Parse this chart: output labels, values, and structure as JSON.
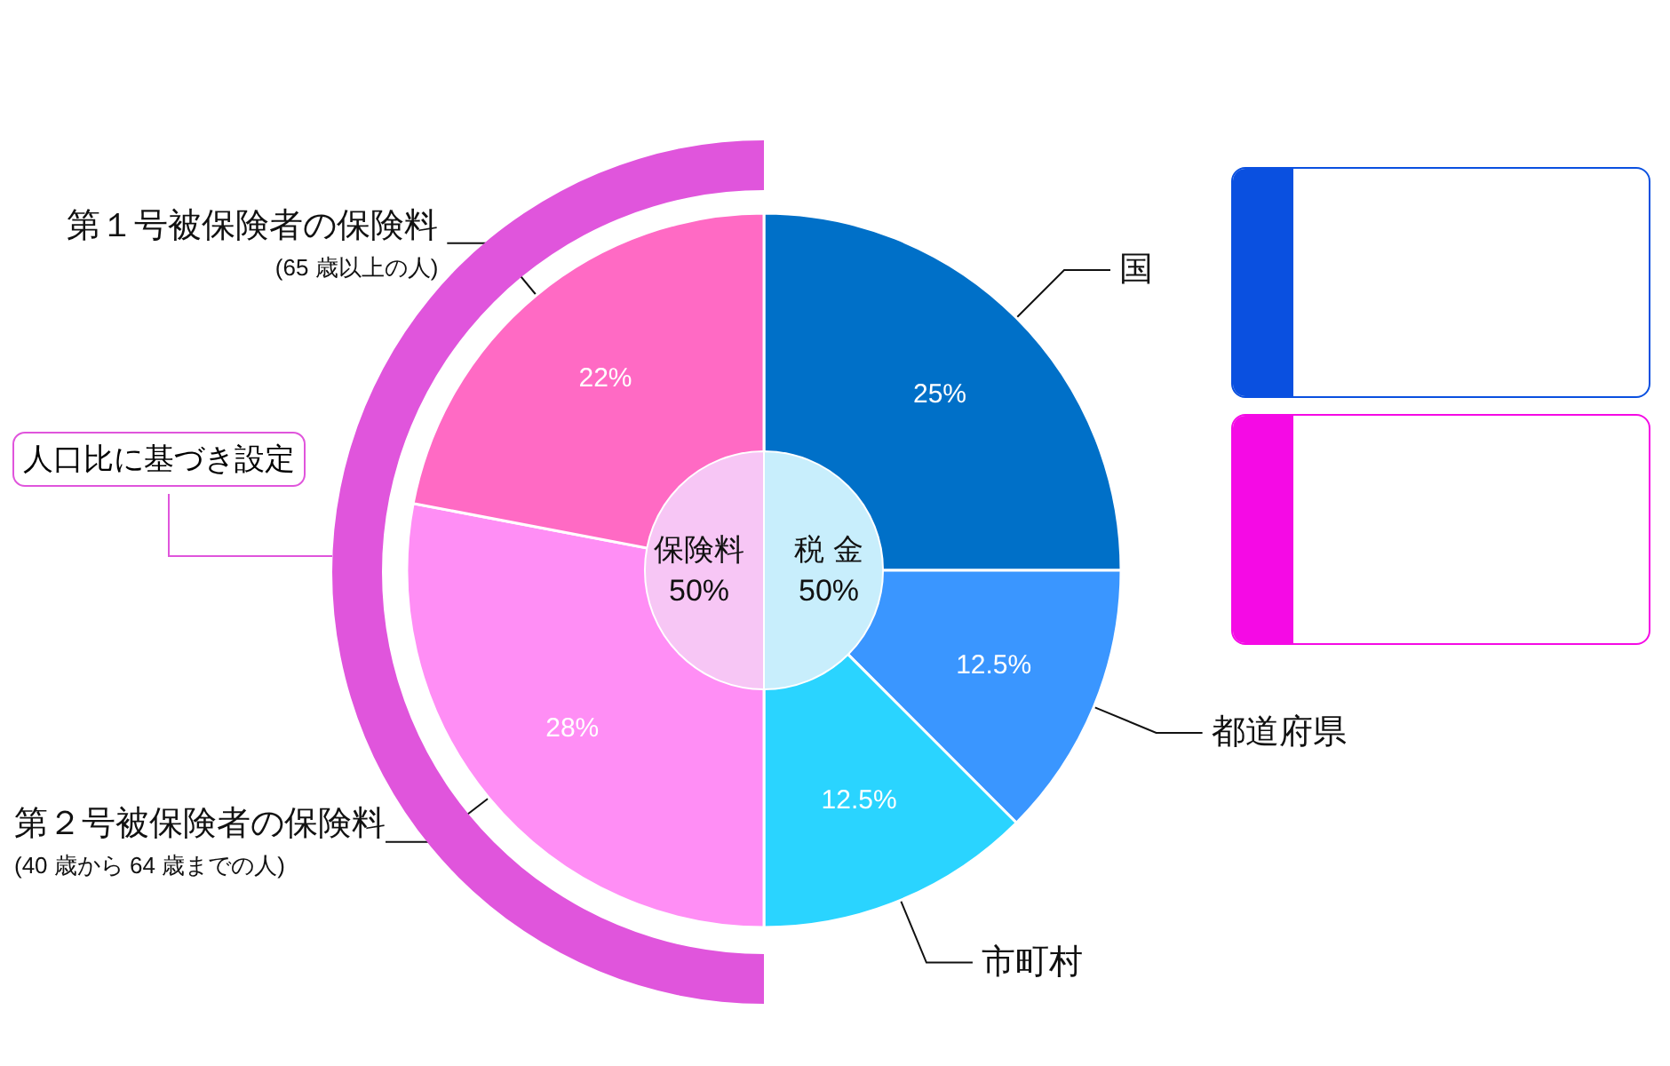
{
  "chart_data": [
    {
      "type": "pie",
      "annotations": [
        "人口比に基づき設定"
      ],
      "categories": [
        "国",
        "都道府県",
        "市町村",
        "第２号被保険者の保険料\n(40 歳から 64 歳までの人)",
        "第１号被保険者の保険料\n(65 歳以上の人)"
      ],
      "values": [
        25,
        12.5,
        12.5,
        28,
        22
      ],
      "colors": [
        "#0070c8",
        "#3a96ff",
        "#2ad4ff",
        "#ff8ef5",
        "#ff6ac4"
      ],
      "value_labels": [
        "25%",
        "12.5%",
        "12.5%",
        "28%",
        "22%"
      ]
    },
    {
      "type": "pie",
      "categories": [
        "税 金",
        "保険料"
      ],
      "values": [
        50,
        50
      ],
      "colors": [
        "#c8eefc",
        "#f7c6f5"
      ],
      "value_labels": [
        "50%",
        "50%"
      ]
    }
  ]
}
